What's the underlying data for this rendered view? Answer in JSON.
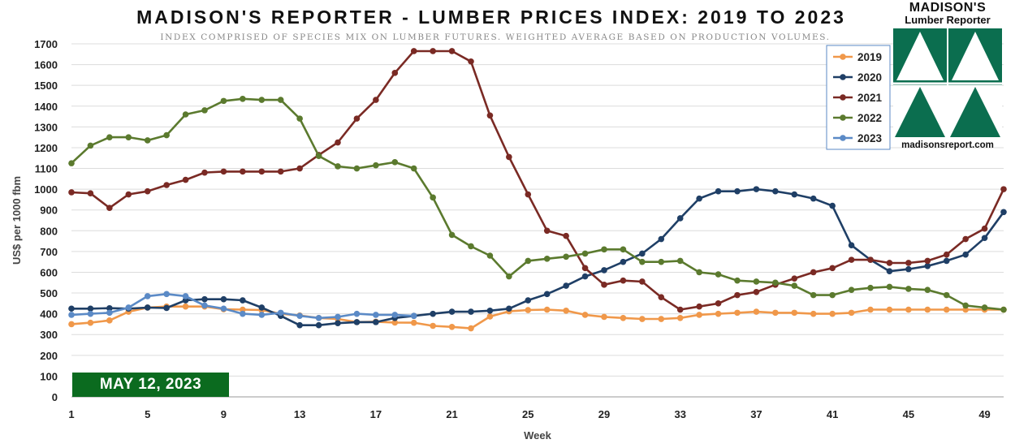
{
  "chart_data": {
    "type": "line",
    "title": "MADISON'S REPORTER - LUMBER PRICES INDEX: 2019 TO 2023",
    "subtitle": "INDEX COMPRISED OF SPECIES MIX ON LUMBER FUTURES. WEIGHTED AVERAGE BASED ON PRODUCTION VOLUMES.",
    "xlabel": "Week",
    "ylabel": "US$ per 1000 fbm",
    "xlim": [
      1,
      50
    ],
    "ylim": [
      0,
      1700
    ],
    "x_ticks": [
      1,
      5,
      9,
      13,
      17,
      21,
      25,
      29,
      33,
      37,
      41,
      45,
      49
    ],
    "y_ticks": [
      0,
      100,
      200,
      300,
      400,
      500,
      600,
      700,
      800,
      900,
      1000,
      1100,
      1200,
      1300,
      1400,
      1500,
      1600,
      1700
    ],
    "grid": "horizontal",
    "legend_position": "top-right",
    "date_badge": "MAY 12, 2023",
    "series": [
      {
        "name": "2019",
        "color": "#f0984a",
        "values": [
          350,
          357,
          368,
          410,
          430,
          435,
          435,
          435,
          422,
          420,
          418,
          400,
          392,
          380,
          375,
          360,
          362,
          358,
          357,
          342,
          337,
          330,
          387,
          412,
          418,
          420,
          415,
          395,
          385,
          380,
          375,
          375,
          380,
          395,
          400,
          405,
          410,
          405,
          405,
          400,
          400,
          405,
          420,
          420,
          420,
          420,
          420,
          420,
          420,
          420
        ]
      },
      {
        "name": "2020",
        "color": "#1f3f66",
        "values": [
          425,
          425,
          427,
          425,
          430,
          428,
          465,
          470,
          470,
          465,
          430,
          390,
          345,
          345,
          355,
          360,
          360,
          380,
          390,
          400,
          410,
          410,
          415,
          425,
          465,
          495,
          535,
          580,
          610,
          650,
          690,
          760,
          860,
          955,
          990,
          990,
          1000,
          990,
          975,
          955,
          920,
          730,
          660,
          605,
          615,
          630,
          655,
          685,
          765,
          890
        ]
      },
      {
        "name": "2021",
        "color": "#7a2a24",
        "values": [
          985,
          980,
          910,
          975,
          990,
          1020,
          1045,
          1080,
          1085,
          1085,
          1085,
          1085,
          1100,
          1165,
          1225,
          1340,
          1430,
          1560,
          1665,
          1665,
          1665,
          1615,
          1355,
          1155,
          975,
          800,
          775,
          620,
          540,
          560,
          555,
          480,
          420,
          435,
          450,
          490,
          505,
          540,
          570,
          600,
          620,
          660,
          660,
          645,
          645,
          655,
          685,
          760,
          810,
          1000
        ]
      },
      {
        "name": "2022",
        "color": "#5b7a2e",
        "values": [
          1125,
          1210,
          1250,
          1250,
          1235,
          1260,
          1360,
          1380,
          1425,
          1435,
          1430,
          1430,
          1340,
          1160,
          1110,
          1100,
          1115,
          1130,
          1100,
          960,
          780,
          725,
          680,
          580,
          655,
          665,
          675,
          690,
          710,
          710,
          650,
          650,
          655,
          600,
          590,
          560,
          555,
          550,
          535,
          490,
          490,
          515,
          525,
          530,
          520,
          515,
          490,
          440,
          430,
          420
        ]
      },
      {
        "name": "2023",
        "color": "#5b8ac6",
        "values": [
          395,
          400,
          405,
          430,
          485,
          495,
          485,
          440,
          425,
          400,
          395,
          405,
          390,
          380,
          385,
          400,
          395,
          395,
          390
        ]
      }
    ]
  },
  "logo": {
    "name": "MADISON'S",
    "subtitle": "Lumber Reporter",
    "url": "madisonsreport.com",
    "color": "#0b6e4f",
    "icon": "tree-triangles-icon"
  }
}
